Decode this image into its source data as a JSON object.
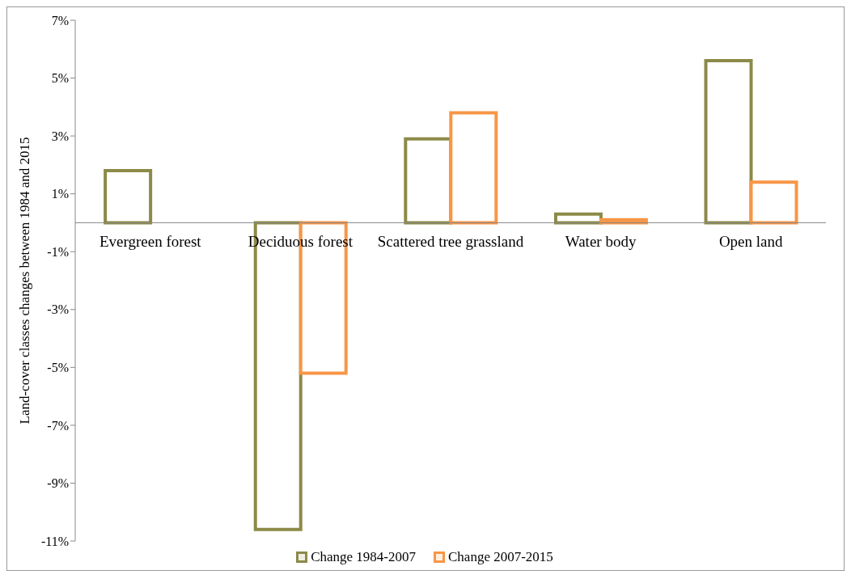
{
  "chart_data": {
    "type": "bar",
    "ylabel": "Land-cover classes changes between 1984 and 2015",
    "categories": [
      "Evergreen forest",
      "Deciduous forest",
      "Scattered tree grassland",
      "Water body",
      "Open land"
    ],
    "series": [
      {
        "name": "Change 1984-2007",
        "color": "#8c8a48",
        "values": [
          1.8,
          -10.6,
          2.9,
          0.3,
          5.6
        ]
      },
      {
        "name": "Change 2007-2015",
        "color": "#f79646",
        "values": [
          0,
          -5.2,
          3.8,
          0.1,
          1.4
        ]
      }
    ],
    "ylim": [
      -11,
      7
    ],
    "yticks": [
      {
        "value": -11,
        "label": "-11%"
      },
      {
        "value": -9,
        "label": "-9%"
      },
      {
        "value": -7,
        "label": "-7%"
      },
      {
        "value": -5,
        "label": "-5%"
      },
      {
        "value": -3,
        "label": "-3%"
      },
      {
        "value": -1,
        "label": "-1%"
      },
      {
        "value": 1,
        "label": "1%"
      },
      {
        "value": 3,
        "label": "3%"
      },
      {
        "value": 5,
        "label": "5%"
      },
      {
        "value": 7,
        "label": "7%"
      }
    ],
    "grid": false,
    "legend": "bottom"
  }
}
